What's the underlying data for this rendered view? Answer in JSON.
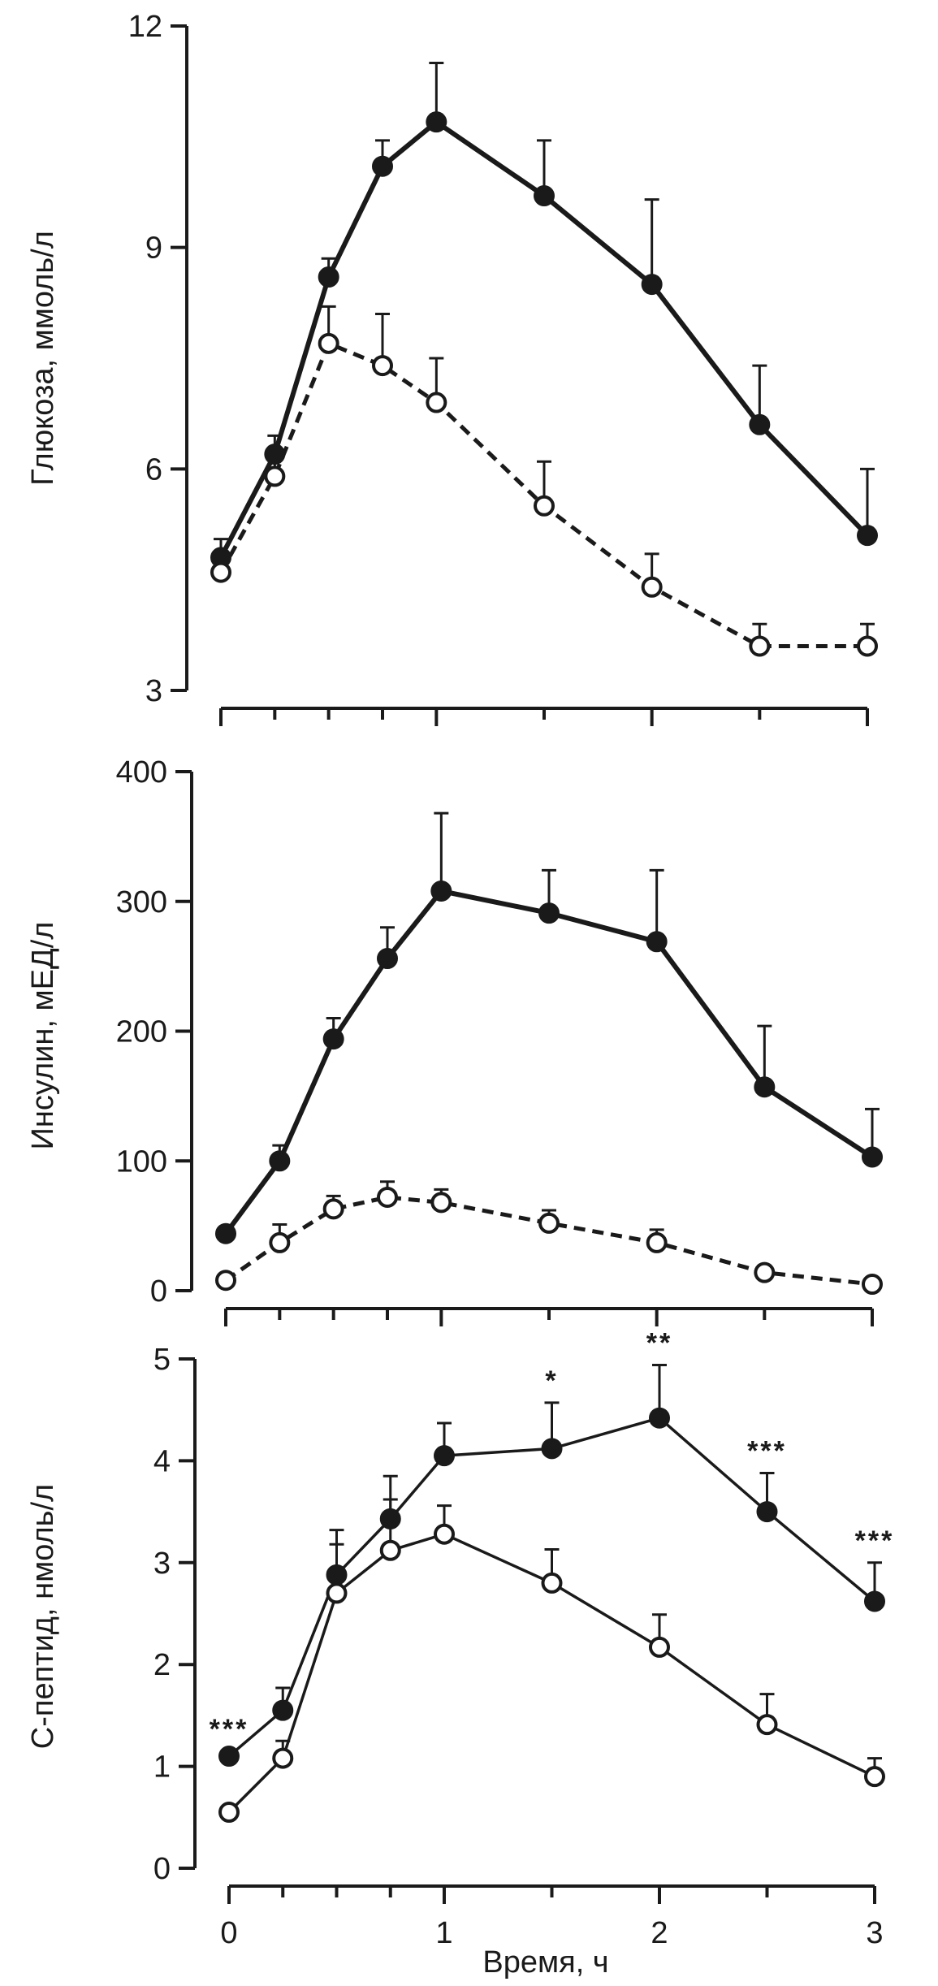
{
  "chart_data": [
    {
      "type": "line",
      "ylabel": "Глюкоза, ммоль/л",
      "ylim": [
        3,
        12
      ],
      "yticks": [
        3,
        6,
        9,
        12
      ],
      "xlim": [
        0,
        3
      ],
      "xticks": [
        0,
        0.25,
        0.5,
        0.75,
        1,
        1.5,
        2,
        2.5,
        3
      ],
      "xtick_labels": [],
      "series": [
        {
          "marker": "filled",
          "line": "solid",
          "x": [
            0,
            0.25,
            0.5,
            0.75,
            1,
            1.5,
            2,
            2.5,
            3
          ],
          "y": [
            4.8,
            6.2,
            8.6,
            10.1,
            10.7,
            9.7,
            8.5,
            6.6,
            5.1
          ],
          "err": [
            0.25,
            0.25,
            0.25,
            0.35,
            0.8,
            0.75,
            1.15,
            0.8,
            0.9
          ]
        },
        {
          "marker": "open",
          "line": "dashed",
          "x": [
            0,
            0.25,
            0.5,
            0.75,
            1,
            1.5,
            2,
            2.5,
            3
          ],
          "y": [
            4.6,
            5.9,
            7.7,
            7.4,
            6.9,
            5.5,
            4.4,
            3.6,
            3.6
          ],
          "err": [
            0.15,
            0.25,
            0.5,
            0.7,
            0.6,
            0.6,
            0.45,
            0.3,
            0.3
          ]
        }
      ]
    },
    {
      "type": "line",
      "ylabel": "Инсулин, мЕД/л",
      "ylim": [
        0,
        400
      ],
      "yticks": [
        0,
        100,
        200,
        300,
        400
      ],
      "xlim": [
        0,
        3
      ],
      "xticks": [
        0,
        0.25,
        0.5,
        0.75,
        1,
        1.5,
        2,
        2.5,
        3
      ],
      "xtick_labels": [],
      "series": [
        {
          "marker": "filled",
          "line": "solid",
          "x": [
            0,
            0.25,
            0.5,
            0.75,
            1,
            1.5,
            2,
            2.5,
            3
          ],
          "y": [
            44,
            100,
            194,
            256,
            308,
            291,
            269,
            157,
            103
          ],
          "err": [
            5,
            12,
            16,
            24,
            60,
            33,
            55,
            47,
            37
          ]
        },
        {
          "marker": "open",
          "line": "dashed",
          "x": [
            0,
            0.25,
            0.5,
            0.75,
            1,
            1.5,
            2,
            2.5,
            3
          ],
          "y": [
            8,
            37,
            63,
            72,
            68,
            52,
            37,
            14,
            5
          ],
          "err": [
            3,
            14,
            10,
            12,
            10,
            10,
            10,
            5,
            3
          ]
        }
      ]
    },
    {
      "type": "line",
      "ylabel": "С-пептид, нмоль/л",
      "xlabel": "Время, ч",
      "ylim": [
        0,
        5
      ],
      "yticks": [
        0,
        1,
        2,
        3,
        4,
        5
      ],
      "xlim": [
        0,
        3
      ],
      "xticks": [
        0,
        0.25,
        0.5,
        0.75,
        1,
        1.5,
        2,
        2.5,
        3
      ],
      "xtick_labels": [
        "0",
        "",
        "",
        "",
        "1",
        "",
        "2",
        "",
        "3"
      ],
      "series": [
        {
          "marker": "filled",
          "line": "solid-thin",
          "x": [
            0,
            0.25,
            0.5,
            0.75,
            1,
            1.5,
            2,
            2.5,
            3
          ],
          "y": [
            1.1,
            1.55,
            2.88,
            3.43,
            4.05,
            4.12,
            4.42,
            3.5,
            2.62
          ],
          "err": [
            0,
            0.22,
            0.3,
            0.42,
            0.32,
            0.45,
            0.52,
            0.38,
            0.38
          ]
        },
        {
          "marker": "open",
          "line": "solid-thin",
          "x": [
            0,
            0.25,
            0.5,
            0.75,
            1,
            1.5,
            2,
            2.5,
            3
          ],
          "y": [
            0.55,
            1.08,
            2.7,
            3.12,
            3.28,
            2.8,
            2.17,
            1.41,
            0.9
          ],
          "err": [
            0,
            0.17,
            0.62,
            0.5,
            0.28,
            0.33,
            0.32,
            0.3,
            0.18
          ]
        }
      ],
      "annotations": [
        {
          "x": 0,
          "y": 1.1,
          "text": "***"
        },
        {
          "x": 1.5,
          "y": 4.57,
          "text": "*"
        },
        {
          "x": 2,
          "y": 4.94,
          "text": "**"
        },
        {
          "x": 2.5,
          "y": 3.88,
          "text": "***"
        },
        {
          "x": 3,
          "y": 3.0,
          "text": "***"
        }
      ]
    }
  ]
}
